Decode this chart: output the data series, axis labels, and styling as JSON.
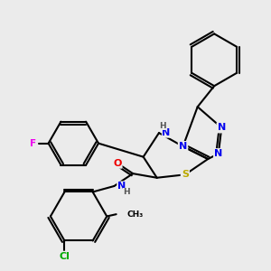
{
  "background_color": "#ebebeb",
  "bond_color": "#000000",
  "atom_colors": {
    "F": "#ee00ee",
    "N": "#0000ee",
    "O": "#ee0000",
    "S": "#bbaa00",
    "Cl": "#00aa00",
    "C": "#000000",
    "H": "#555555"
  },
  "figsize": [
    3.0,
    3.0
  ],
  "dpi": 100
}
